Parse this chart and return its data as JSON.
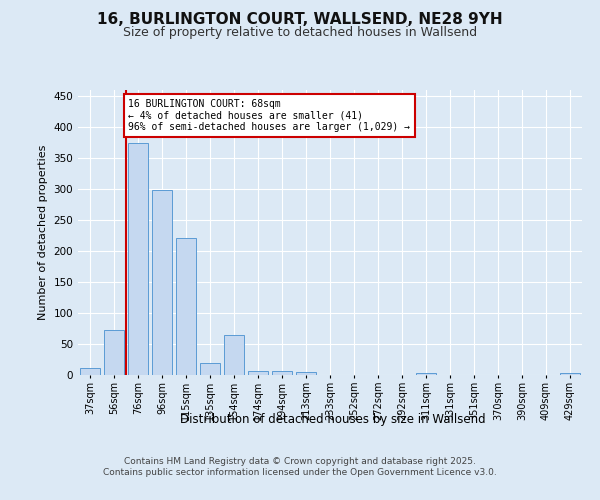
{
  "title": "16, BURLINGTON COURT, WALLSEND, NE28 9YH",
  "subtitle": "Size of property relative to detached houses in Wallsend",
  "xlabel": "Distribution of detached houses by size in Wallsend",
  "ylabel": "Number of detached properties",
  "categories": [
    "37sqm",
    "56sqm",
    "76sqm",
    "96sqm",
    "115sqm",
    "135sqm",
    "154sqm",
    "174sqm",
    "194sqm",
    "213sqm",
    "233sqm",
    "252sqm",
    "272sqm",
    "292sqm",
    "311sqm",
    "331sqm",
    "351sqm",
    "370sqm",
    "390sqm",
    "409sqm",
    "429sqm"
  ],
  "values": [
    11,
    72,
    375,
    298,
    221,
    19,
    65,
    7,
    6,
    5,
    0,
    0,
    0,
    0,
    3,
    0,
    0,
    0,
    0,
    0,
    3
  ],
  "bar_color": "#c5d8f0",
  "bar_edge_color": "#5b9bd5",
  "background_color": "#dce9f5",
  "plot_bg_color": "#dce9f5",
  "grid_color": "#ffffff",
  "vline_x": 1.5,
  "vline_color": "#cc0000",
  "annotation_text": "16 BURLINGTON COURT: 68sqm\n← 4% of detached houses are smaller (41)\n96% of semi-detached houses are larger (1,029) →",
  "annotation_box_color": "#ffffff",
  "annotation_box_edge_color": "#cc0000",
  "ylim": [
    0,
    460
  ],
  "yticks": [
    0,
    50,
    100,
    150,
    200,
    250,
    300,
    350,
    400,
    450
  ],
  "footer_text": "Contains HM Land Registry data © Crown copyright and database right 2025.\nContains public sector information licensed under the Open Government Licence v3.0.",
  "title_fontsize": 11,
  "subtitle_fontsize": 9,
  "ann_fontsize": 7
}
